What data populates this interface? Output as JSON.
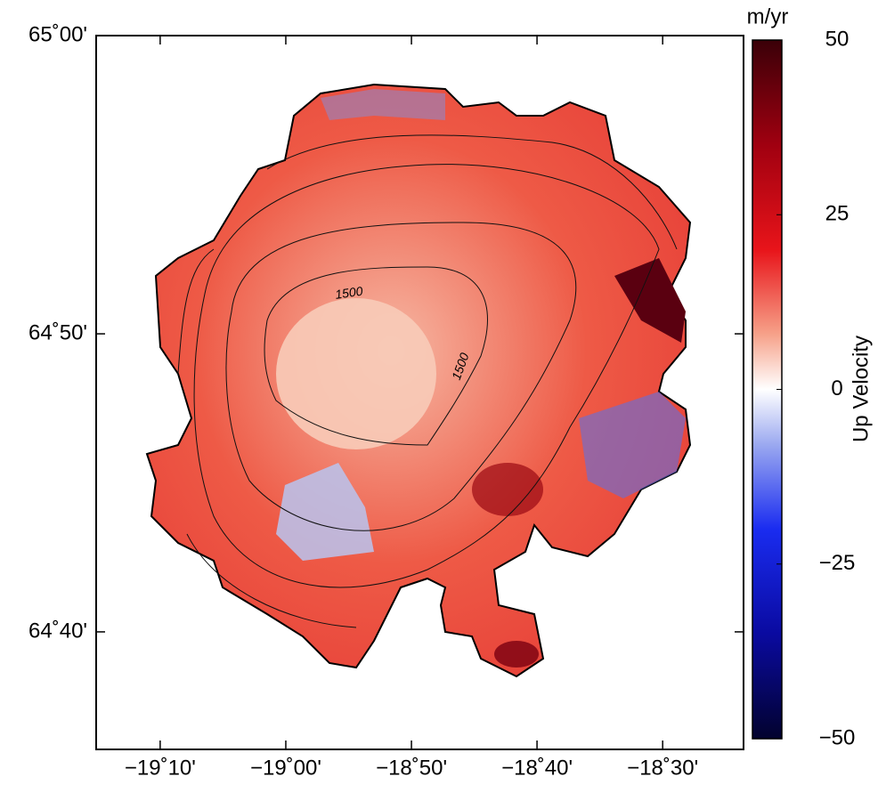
{
  "map": {
    "xlim": [
      -19.2516,
      -18.3927
    ],
    "ylim": [
      64.601,
      65.0
    ],
    "xticks": [
      {
        "value": -19.1667,
        "label": "−19˚10'"
      },
      {
        "value": -19.0,
        "label": "−19˚00'"
      },
      {
        "value": -18.8333,
        "label": "−18˚50'"
      },
      {
        "value": -18.6667,
        "label": "−18˚40'"
      },
      {
        "value": -18.5,
        "label": "−18˚30'"
      }
    ],
    "yticks": [
      {
        "value": 65.0,
        "label": "65˚00'"
      },
      {
        "value": 64.8333,
        "label": "64˚50'"
      },
      {
        "value": 64.6667,
        "label": "64˚40'"
      }
    ],
    "contour_labels": [
      "1500",
      "1500"
    ]
  },
  "colorbar": {
    "label": "Up Velocity",
    "unit": "m/yr",
    "lim": [
      -50,
      50
    ],
    "ticks": [
      50,
      25,
      0,
      {
        "value": -25,
        "label": "−25"
      },
      {
        "value": -50,
        "label": "−50"
      }
    ]
  }
}
